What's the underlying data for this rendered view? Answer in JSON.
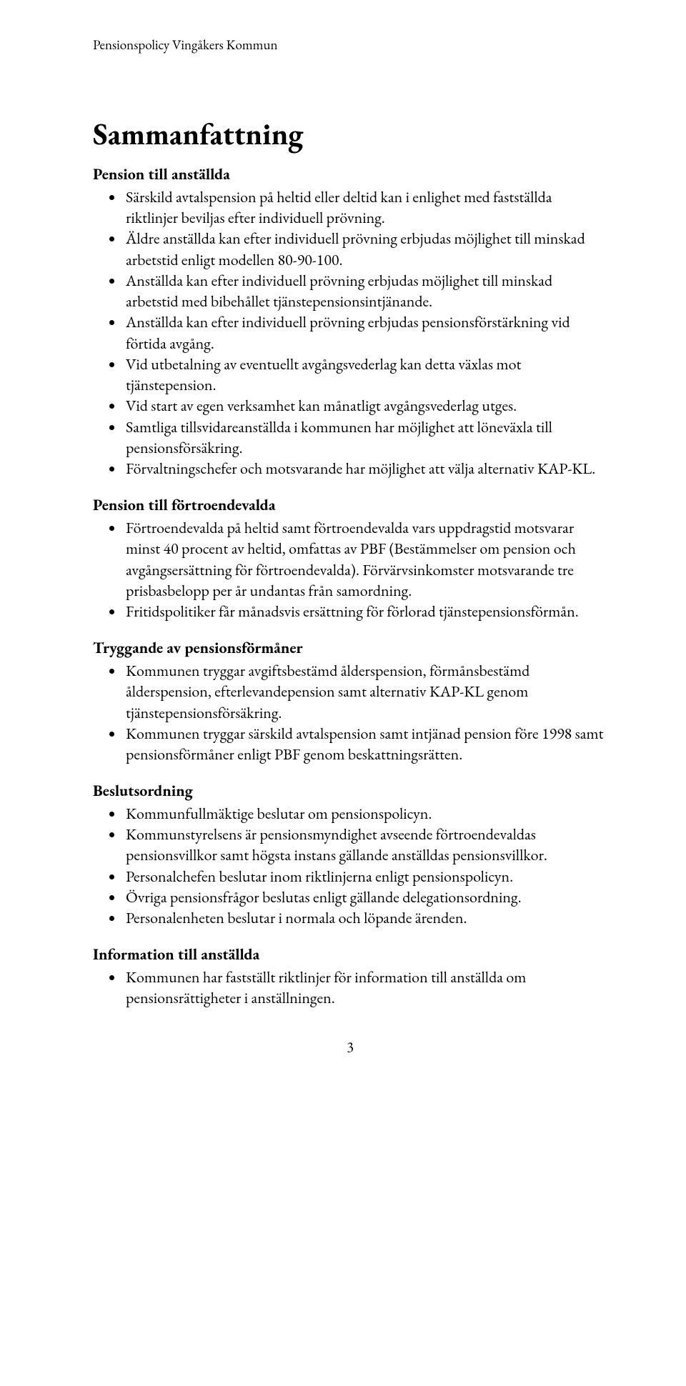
{
  "header": "Pensionspolicy Vingåkers Kommun",
  "title": "Sammanfattning",
  "sections": [
    {
      "heading": "Pension till anställda",
      "items": [
        "Särskild avtalspension på heltid eller deltid kan i enlighet med fastställda riktlinjer beviljas efter individuell prövning.",
        "Äldre anställda kan efter individuell prövning erbjudas möjlighet till minskad arbetstid enligt modellen 80-90-100.",
        "Anställda kan efter individuell prövning erbjudas möjlighet till minskad arbetstid med bibehållet tjänstepensionsintjänande.",
        "Anställda kan efter individuell prövning erbjudas pensionsförstärkning vid förtida avgång.",
        "Vid utbetalning av eventuellt avgångsvederlag kan detta växlas mot tjänstepension.",
        "Vid start av egen verksamhet kan månatligt avgångsvederlag utges.",
        "Samtliga tillsvidareanställda i kommunen har möjlighet att löneväxla till pensionsförsäkring.",
        "Förvaltningschefer och motsvarande har möjlighet att välja alternativ KAP-KL."
      ]
    },
    {
      "heading": "Pension till förtroendevalda",
      "items": [
        "Förtroendevalda på heltid samt förtroendevalda vars uppdragstid motsvarar minst 40 procent av heltid, omfattas av PBF (Bestämmelser om pension och avgångsersättning för förtroendevalda). Förvärvsinkomster motsvarande tre prisbasbelopp per år undantas från samordning.",
        "Fritidspolitiker får månadsvis ersättning för förlorad tjänstepensionsförmån."
      ]
    },
    {
      "heading": "Tryggande av pensionsförmåner",
      "items": [
        "Kommunen tryggar avgiftsbestämd ålderspension, förmånsbestämd ålderspension, efterlevandepension samt alternativ KAP-KL genom tjänstepensionsförsäkring.",
        "Kommunen tryggar särskild avtalspension samt intjänad pension före 1998 samt pensionsförmåner enligt PBF genom beskattningsrätten."
      ]
    },
    {
      "heading": "Beslutsordning",
      "items": [
        "Kommunfullmäktige beslutar om pensionspolicyn.",
        "Kommunstyrelsens är pensionsmyndighet avseende förtroendevaldas pensionsvillkor samt högsta instans gällande anställdas pensionsvillkor.",
        "Personalchefen beslutar inom riktlinjerna enligt pensionspolicyn.",
        "Övriga pensionsfrågor beslutas enligt gällande delegationsordning.",
        "Personalenheten beslutar i normala och löpande ärenden."
      ]
    },
    {
      "heading": "Information till anställda",
      "items": [
        "Kommunen har fastställt riktlinjer för information till anställda om pensionsrättigheter i anställningen."
      ]
    }
  ],
  "page_number": "3"
}
